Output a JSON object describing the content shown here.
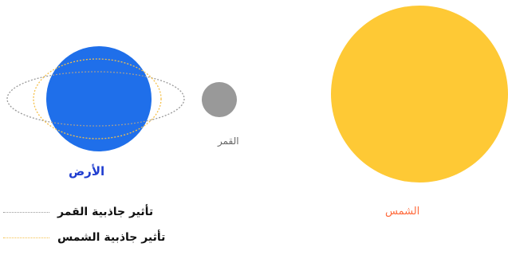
{
  "bodies": {
    "earth": {
      "label": "الأرض",
      "color": "#1f6fea",
      "label_color": "#1e3ccf"
    },
    "moon": {
      "label": "القمر",
      "color": "#999999",
      "label_color": "#666666"
    },
    "sun": {
      "label": "الشمس",
      "color": "#fec935",
      "label_color": "#ff6b3d"
    }
  },
  "legend": {
    "moon_tide": {
      "label": "تأثير جاذبية القمر",
      "color": "#9a9a9a"
    },
    "sun_tide": {
      "label": "تأثير جاذبية الشمس",
      "color": "#f5c04a"
    }
  }
}
